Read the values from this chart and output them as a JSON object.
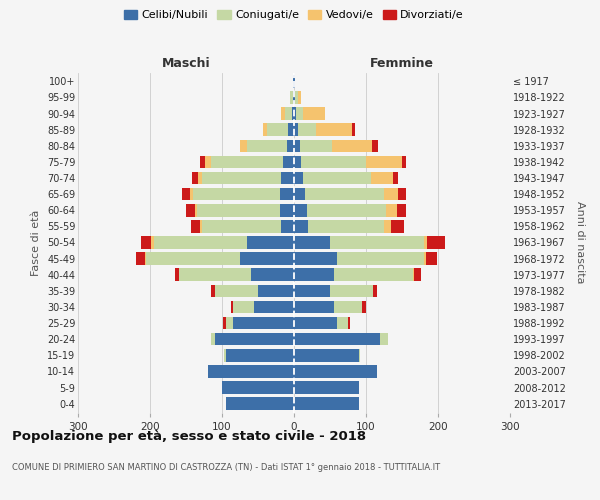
{
  "age_groups": [
    "0-4",
    "5-9",
    "10-14",
    "15-19",
    "20-24",
    "25-29",
    "30-34",
    "35-39",
    "40-44",
    "45-49",
    "50-54",
    "55-59",
    "60-64",
    "65-69",
    "70-74",
    "75-79",
    "80-84",
    "85-89",
    "90-94",
    "95-99",
    "100+"
  ],
  "birth_years": [
    "2013-2017",
    "2008-2012",
    "2003-2007",
    "1998-2002",
    "1993-1997",
    "1988-1992",
    "1983-1987",
    "1978-1982",
    "1973-1977",
    "1968-1972",
    "1963-1967",
    "1958-1962",
    "1953-1957",
    "1948-1952",
    "1943-1947",
    "1938-1942",
    "1933-1937",
    "1928-1932",
    "1923-1927",
    "1918-1922",
    "≤ 1917"
  ],
  "males": {
    "celibi": [
      95,
      100,
      120,
      95,
      110,
      85,
      55,
      50,
      60,
      75,
      65,
      18,
      20,
      20,
      18,
      15,
      10,
      8,
      3,
      2,
      1
    ],
    "coniugati": [
      0,
      0,
      0,
      2,
      5,
      10,
      30,
      60,
      100,
      130,
      130,
      110,
      115,
      120,
      110,
      100,
      55,
      30,
      10,
      3,
      0
    ],
    "vedovi": [
      0,
      0,
      0,
      0,
      0,
      0,
      0,
      0,
      0,
      2,
      3,
      3,
      3,
      5,
      5,
      8,
      10,
      5,
      5,
      0,
      0
    ],
    "divorziati": [
      0,
      0,
      0,
      0,
      0,
      3,
      3,
      5,
      5,
      12,
      15,
      12,
      12,
      10,
      8,
      8,
      0,
      0,
      0,
      0,
      0
    ]
  },
  "females": {
    "nubili": [
      90,
      90,
      115,
      90,
      120,
      60,
      55,
      50,
      55,
      60,
      50,
      20,
      18,
      15,
      12,
      10,
      8,
      5,
      3,
      2,
      1
    ],
    "coniugate": [
      0,
      0,
      0,
      2,
      10,
      15,
      40,
      60,
      110,
      120,
      130,
      105,
      110,
      110,
      95,
      90,
      45,
      25,
      10,
      3,
      0
    ],
    "vedove": [
      0,
      0,
      0,
      0,
      0,
      0,
      0,
      0,
      2,
      3,
      5,
      10,
      15,
      20,
      30,
      50,
      55,
      50,
      30,
      5,
      0
    ],
    "divorziate": [
      0,
      0,
      0,
      0,
      0,
      3,
      5,
      5,
      10,
      15,
      25,
      18,
      12,
      10,
      8,
      5,
      8,
      5,
      0,
      0,
      0
    ]
  },
  "colors": {
    "celibi_nubili": "#3d6fa8",
    "coniugati": "#c5d8a4",
    "vedovi": "#f5c36e",
    "divorziati": "#cc1a1a"
  },
  "title": "Popolazione per età, sesso e stato civile - 2018",
  "subtitle": "COMUNE DI PRIMIERO SAN MARTINO DI CASTROZZA (TN) - Dati ISTAT 1° gennaio 2018 - TUTTITALIA.IT",
  "xlabel_left": "Maschi",
  "xlabel_right": "Femmine",
  "ylabel_left": "Fasce di età",
  "ylabel_right": "Anni di nascita",
  "xlim": 300,
  "legend_labels": [
    "Celibi/Nubili",
    "Coniugati/e",
    "Vedovi/e",
    "Divorziati/e"
  ],
  "bg_color": "#f5f5f5",
  "legend_colors": [
    "#3d6fa8",
    "#c5d8a4",
    "#f5c36e",
    "#cc1a1a"
  ]
}
